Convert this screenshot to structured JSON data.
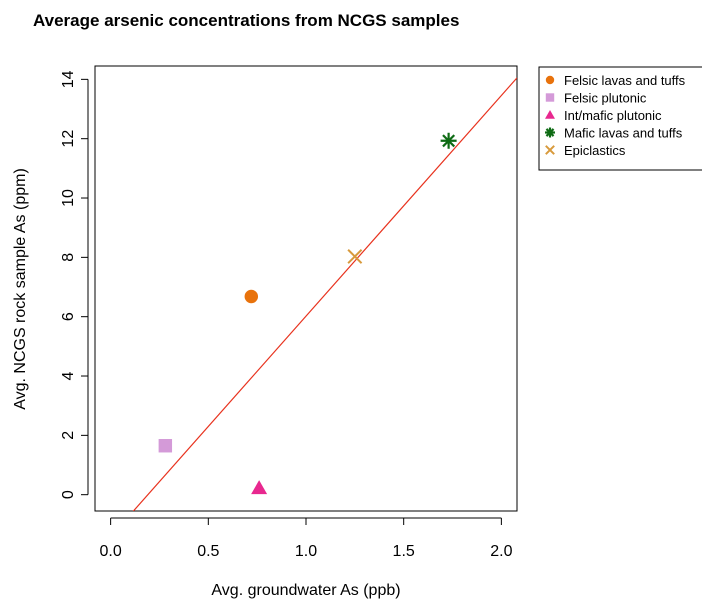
{
  "chart_data": {
    "type": "scatter",
    "title": "Average arsenic concentrations from NCGS samples",
    "xlabel": "Avg. groundwater As (ppb)",
    "ylabel": "Avg. NCGS rock sample As (ppm)",
    "xlim": [
      -0.08,
      2.08
    ],
    "ylim": [
      -0.55,
      14.45
    ],
    "xticks": [
      0.0,
      0.5,
      1.0,
      1.5,
      2.0
    ],
    "xtick_labels": [
      "0.0",
      "0.5",
      "1.0",
      "1.5",
      "2.0"
    ],
    "yticks": [
      0,
      2,
      4,
      6,
      8,
      10,
      12,
      14
    ],
    "ytick_labels": [
      "0",
      "2",
      "4",
      "6",
      "8",
      "10",
      "12",
      "14"
    ],
    "grid": false,
    "legend_position": "top-right, outside plot",
    "series": [
      {
        "name": "Felsic lavas and tuffs",
        "marker": "circle",
        "color": "#e8720c",
        "x": 0.72,
        "y": 6.68
      },
      {
        "name": "Felsic plutonic",
        "marker": "square",
        "color": "#d49ad8",
        "x": 0.28,
        "y": 1.65
      },
      {
        "name": "Int/mafic plutonic",
        "marker": "triangle",
        "color": "#e8288f",
        "x": 0.76,
        "y": 0.22
      },
      {
        "name": "Mafic lavas and tuffs",
        "marker": "asterisk",
        "color": "#0e6b14",
        "x": 1.73,
        "y": 11.93
      },
      {
        "name": "Epiclastics",
        "marker": "cross",
        "color": "#d89a3c",
        "x": 1.25,
        "y": 8.03
      }
    ],
    "fit_line": {
      "color": "#e8321e",
      "x": [
        0.11,
        2.08
      ],
      "y": [
        -0.6,
        14.05
      ]
    }
  }
}
